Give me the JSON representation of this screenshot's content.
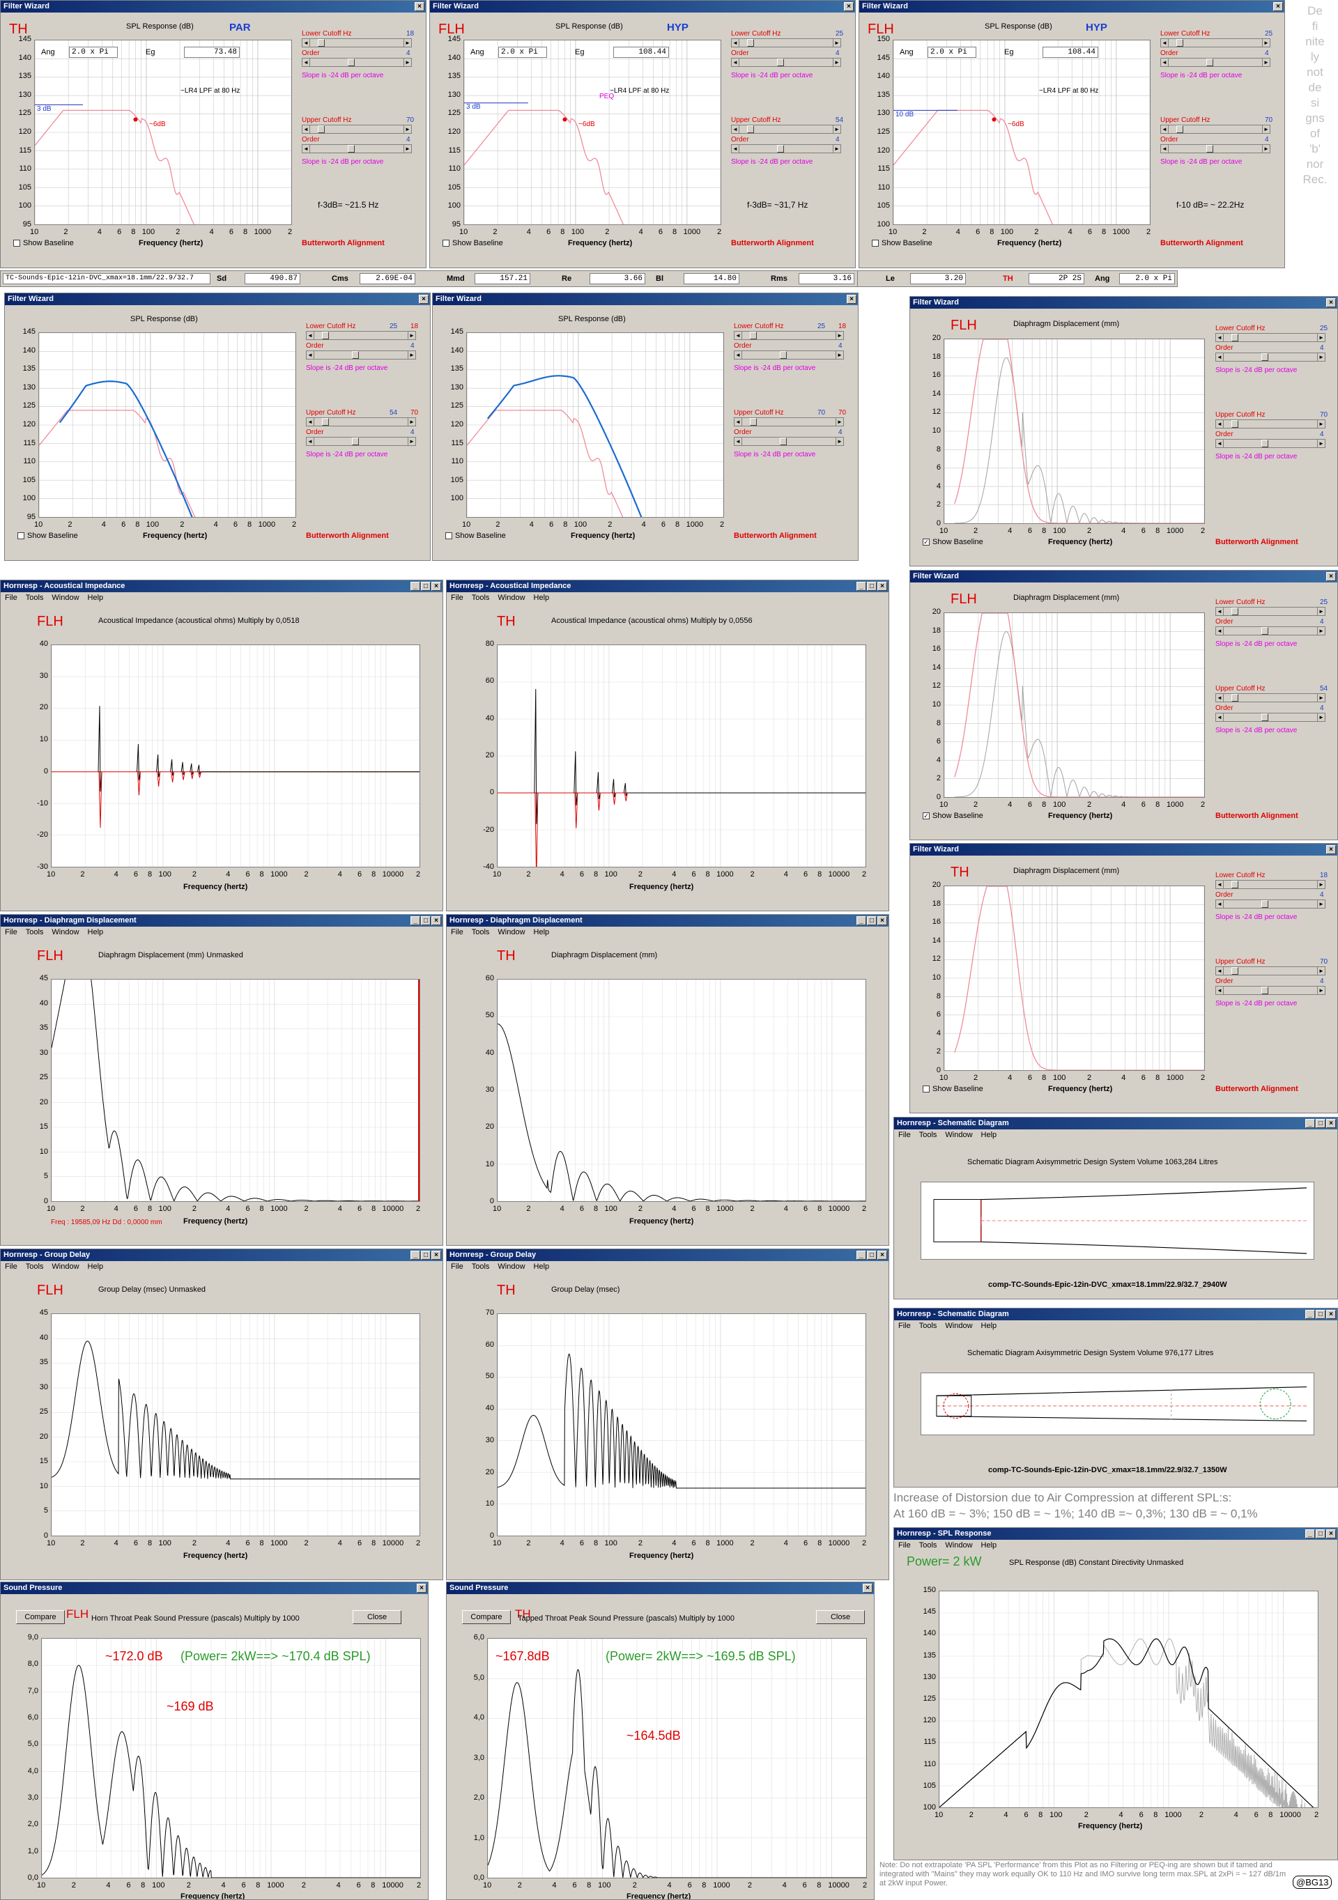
{
  "side_text": [
    "De",
    "fi",
    "nite",
    "ly",
    "not",
    "de",
    "si",
    "gns",
    "of",
    "'b'",
    "nor",
    "Rec."
  ],
  "fw_top": [
    {
      "title": "Filter Wizard",
      "tag": "TH",
      "kind": "PAR",
      "plot_title": "SPL Response (dB)",
      "ang_label": "Ang",
      "ang": "2.0 x Pi",
      "eg_label": "Eg",
      "eg": "73.48",
      "lpf": "~LR4 LPF at 80 Hz",
      "db3": "3 dB",
      "db6": "~6dB",
      "peq": "",
      "result": "f-3dB= ~21.5 Hz",
      "yticks": [
        "145",
        "140",
        "135",
        "130",
        "125",
        "120",
        "115",
        "110",
        "105",
        "100",
        "95"
      ],
      "lower": {
        "label": "Lower Cutoff  Hz",
        "v": "18",
        "order": "4"
      },
      "upper": {
        "label": "Upper Cutoff  Hz",
        "v": "70",
        "order": "4"
      }
    },
    {
      "title": "Filter Wizard",
      "tag": "FLH",
      "kind": "HYP",
      "plot_title": "SPL Response (dB)",
      "ang_label": "Ang",
      "ang": "2.0 x Pi",
      "eg_label": "Eg",
      "eg": "108.44",
      "lpf": "~LR4 LPF at 80 Hz",
      "db3": "3 dB",
      "db6": "~6dB",
      "peq": "PEQ",
      "result": "f-3dB= ~31,7 Hz",
      "yticks": [
        "145",
        "140",
        "135",
        "130",
        "125",
        "120",
        "115",
        "110",
        "105",
        "100",
        "95"
      ],
      "lower": {
        "label": "Lower Cutoff  Hz",
        "v": "25",
        "order": "4"
      },
      "upper": {
        "label": "Upper Cutoff  Hz",
        "v": "54",
        "order": "4"
      }
    },
    {
      "title": "Filter Wizard",
      "tag": "FLH",
      "kind": "HYP",
      "plot_title": "SPL Response (dB)",
      "ang_label": "Ang",
      "ang": "2.0 x Pi",
      "eg_label": "Eg",
      "eg": "108.44",
      "lpf": "~LR4 LPF at 80 Hz",
      "db3": "10 dB",
      "db6": "~6dB",
      "peq": "",
      "result": "f-10 dB= ~ 22.2Hz",
      "yticks": [
        "150",
        "145",
        "140",
        "135",
        "130",
        "125",
        "120",
        "115",
        "110",
        "105",
        "100"
      ],
      "lower": {
        "label": "Lower Cutoff  Hz",
        "v": "25",
        "order": "4"
      },
      "upper": {
        "label": "Upper Cutoff  Hz",
        "v": "70",
        "order": "4"
      }
    }
  ],
  "common": {
    "slope": "Slope is -24 dB per octave",
    "order": "Order",
    "baseline": "Show Baseline",
    "freq": "Frequency (hertz)",
    "butter": "Butterworth Alignment",
    "xticks": [
      "10",
      "2",
      "4",
      "6",
      "8",
      "100",
      "2",
      "4",
      "6",
      "8",
      "1000",
      "2"
    ],
    "xticks_long": [
      "10",
      "2",
      "4",
      "6",
      "8",
      "100",
      "2",
      "4",
      "6",
      "8",
      "1000",
      "2",
      "4",
      "6",
      "8",
      "10000",
      "2"
    ]
  },
  "driver": {
    "name": "TC-Sounds-Epic-12in-DVC_xmax=18.1mm/22.9/32.7",
    "sd_l": "Sd",
    "sd": "490.87",
    "cms_l": "Cms",
    "cms": "2.69E-04",
    "mmd_l": "Mmd",
    "mmd": "157.21",
    "re_l": "Re",
    "re": "3.66",
    "bl_l": "Bl",
    "bl": "14.80",
    "rms_l": "Rms",
    "rms": "3.16",
    "le_l": "Le",
    "le": "3.20",
    "th_l": "TH",
    "th": "2P 2S",
    "ang_l": "Ang",
    "ang": "2.0 x Pi"
  },
  "fw_mid": [
    {
      "title": "Filter Wizard",
      "plot_title": "SPL Response (dB)",
      "yticks": [
        "145",
        "140",
        "135",
        "130",
        "125",
        "120",
        "115",
        "110",
        "105",
        "100",
        "95"
      ],
      "lower": {
        "label": "Lower Cutoff  Hz",
        "v": "25",
        "v2": "18",
        "order": "4"
      },
      "upper": {
        "label": "Upper Cutoff  Hz",
        "v": "54",
        "v2": "70",
        "order": "4"
      }
    },
    {
      "title": "Filter Wizard",
      "plot_title": "SPL Response (dB)",
      "yticks": [
        "145",
        "140",
        "135",
        "130",
        "125",
        "120",
        "115",
        "110",
        "105",
        "100"
      ],
      "lower": {
        "label": "Lower Cutoff  Hz",
        "v": "25",
        "v2": "18",
        "order": "4"
      },
      "upper": {
        "label": "Upper Cutoff  Hz",
        "v": "70",
        "v2": "70",
        "order": "4"
      }
    }
  ],
  "fw_disp": [
    {
      "title": "Filter Wizard",
      "tag": "FLH",
      "plot_title": "Diaphragm Displacement (mm)",
      "yticks": [
        "20",
        "18",
        "16",
        "14",
        "12",
        "10",
        "8",
        "6",
        "4",
        "2",
        "0"
      ],
      "lower": {
        "label": "Lower Cutoff  Hz",
        "v": "25",
        "order": "4"
      },
      "upper": {
        "label": "Upper Cutoff  Hz",
        "v": "70",
        "order": "4"
      }
    },
    {
      "title": "Filter Wizard",
      "tag": "FLH",
      "plot_title": "Diaphragm Displacement (mm)",
      "yticks": [
        "20",
        "18",
        "16",
        "14",
        "12",
        "10",
        "8",
        "6",
        "4",
        "2",
        "0"
      ],
      "lower": {
        "label": "Lower Cutoff  Hz",
        "v": "25",
        "order": "4"
      },
      "upper": {
        "label": "Upper Cutoff  Hz",
        "v": "54",
        "order": "4"
      }
    },
    {
      "title": "Filter Wizard",
      "tag": "TH",
      "plot_title": "Diaphragm Displacement (mm)",
      "yticks": [
        "20",
        "18",
        "16",
        "14",
        "12",
        "10",
        "8",
        "6",
        "4",
        "2",
        "0"
      ],
      "lower": {
        "label": "Lower Cutoff  Hz",
        "v": "18",
        "order": "4"
      },
      "upper": {
        "label": "Upper Cutoff  Hz",
        "v": "70",
        "order": "4"
      }
    }
  ],
  "menu": [
    "File",
    "Tools",
    "Window",
    "Help"
  ],
  "hr": [
    {
      "title": "Hornresp - Acoustical Impedance",
      "tag": "FLH",
      "plot_title": "Acoustical Impedance (acoustical ohms)   Multiply by 0,0518",
      "yticks": [
        "40",
        "30",
        "20",
        "10",
        "0",
        "-10",
        "-20",
        "-30"
      ]
    },
    {
      "title": "Hornresp - Acoustical Impedance",
      "tag": "TH",
      "plot_title": "Acoustical Impedance (acoustical ohms)   Multiply by 0,0556",
      "yticks": [
        "80",
        "60",
        "40",
        "20",
        "0",
        "-20",
        "-40"
      ]
    },
    {
      "title": "Hornresp - Diaphragm Displacement",
      "tag": "FLH",
      "plot_title": "Diaphragm Displacement (mm)   Unmasked",
      "yticks": [
        "45",
        "40",
        "35",
        "30",
        "25",
        "20",
        "15",
        "10",
        "5",
        "0"
      ],
      "note": "Freq : 19585,09 Hz    Dd : 0,0000 mm"
    },
    {
      "title": "Hornresp - Diaphragm Displacement",
      "tag": "TH",
      "plot_title": "Diaphragm Displacement (mm)",
      "yticks": [
        "60",
        "50",
        "40",
        "30",
        "20",
        "10",
        "0"
      ]
    },
    {
      "title": "Hornresp - Group Delay",
      "tag": "FLH",
      "plot_title": "Group Delay (msec)   Unmasked",
      "yticks": [
        "45",
        "40",
        "35",
        "30",
        "25",
        "20",
        "15",
        "10",
        "5",
        "0"
      ]
    },
    {
      "title": "Hornresp - Group Delay",
      "tag": "TH",
      "plot_title": "Group Delay (msec)",
      "yticks": [
        "70",
        "60",
        "50",
        "40",
        "30",
        "20",
        "10",
        "0"
      ]
    }
  ],
  "schem": [
    {
      "title": "Hornresp - Schematic Diagram",
      "plot_title": "Schematic Diagram   Axisymmetric Design   System Volume 1063,284 Litres",
      "caption": "comp-TC-Sounds-Epic-12in-DVC_xmax=18.1mm/22.9/32.7_2940W"
    },
    {
      "title": "Hornresp - Schematic Diagram",
      "plot_title": "Schematic Diagram   Axisymmetric Design   System Volume 976,177 Litres",
      "caption": "comp-TC-Sounds-Epic-12in-DVC_xmax=18.1mm/22.9/32.7_1350W"
    }
  ],
  "distortion": {
    "line1": "Increase of Distorsion due to Air Compression at different SPL:s:",
    "line2": "At 160 dB = ~ 3%; 150 dB = ~ 1%; 140 dB =~ 0,3%; 130 dB = ~ 0,1%"
  },
  "sp": [
    {
      "title": "Sound Pressure",
      "compare": "Compare",
      "close": "Close",
      "tag": "FLH",
      "plot_title": "Horn Throat Peak Sound Pressure (pascals)   Multiply by 1000",
      "yticks": [
        "9,0",
        "8,0",
        "7,0",
        "6,0",
        "5,0",
        "4,0",
        "3,0",
        "2,0",
        "1,0",
        "0,0"
      ],
      "a1": "~172.0 dB",
      "a2": "(Power= 2kW==> ~170.4 dB SPL)",
      "a3": "~169 dB"
    },
    {
      "title": "Sound Pressure",
      "compare": "Compare",
      "close": "Close",
      "tag": "TH",
      "plot_title": "Tapped Throat Peak Sound Pressure (pascals)   Multiply by 1000",
      "yticks": [
        "6,0",
        "5,0",
        "4,0",
        "3,0",
        "2,0",
        "1,0",
        "0,0"
      ],
      "a1": "~167.8dB",
      "a2": "(Power= 2kW==> ~169.5 dB SPL)",
      "a3": "~164.5dB"
    }
  ],
  "spl_cd": {
    "title": "Hornresp - SPL Response",
    "power": "Power= 2 kW",
    "plot_title": "SPL Response (dB)   Constant Directivity   Unmasked",
    "yticks": [
      "150",
      "145",
      "140",
      "135",
      "130",
      "125",
      "120",
      "115",
      "110",
      "105",
      "100"
    ]
  },
  "footnote": "Note: Do not extrapolate 'PA SPL 'Performance' from this Plot as no Filtering or PEQ-ing are shown but if tamed and integrated with \"Mains\" they may work equally OK to 110 Hz and IMO survive long term max.SPL at 2xPi = ~ 127 dB/1m at 2kW input Power.",
  "signature": "@BG13"
}
